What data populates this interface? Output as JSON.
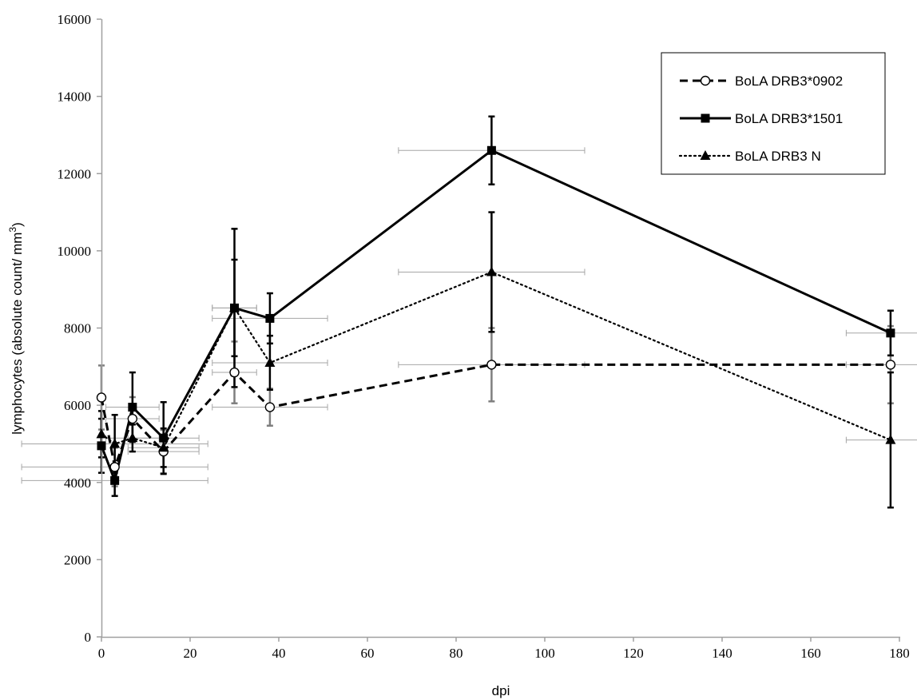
{
  "chart_data": {
    "type": "line",
    "xlabel": "dpi",
    "ylabel_main": "lymphocytes (absolute count/ mm",
    "ylabel_sup": "3",
    "ylabel_close": ")",
    "xlim": [
      0,
      180
    ],
    "ylim": [
      0,
      16000
    ],
    "x_ticks": [
      0,
      20,
      40,
      60,
      80,
      100,
      120,
      140,
      160,
      180
    ],
    "y_ticks": [
      0,
      2000,
      4000,
      6000,
      8000,
      10000,
      12000,
      14000,
      16000
    ],
    "grid": false,
    "legend_position": "top-right",
    "x": [
      0,
      3,
      7,
      14,
      30,
      38,
      88,
      178
    ],
    "x_error": [
      0,
      21,
      6,
      8,
      5,
      13,
      21,
      10
    ],
    "series": [
      {
        "name": "BoLA DRB3*0902",
        "style": "dashed",
        "marker": "open-circle",
        "values": [
          6200,
          4400,
          5650,
          4800,
          6850,
          5950,
          7050,
          7050
        ],
        "y_error": [
          830,
          500,
          560,
          560,
          800,
          480,
          950,
          1000
        ]
      },
      {
        "name": "BoLA DRB3*1501",
        "style": "solid",
        "marker": "filled-square",
        "values": [
          4950,
          4050,
          5950,
          5150,
          8520,
          8250,
          12600,
          7870
        ],
        "y_error": [
          700,
          400,
          900,
          930,
          2050,
          650,
          880,
          580
        ]
      },
      {
        "name": "BoLA DRB3 N",
        "style": "dotted",
        "marker": "filled-triangle",
        "values": [
          5250,
          5000,
          5150,
          4900,
          8520,
          7100,
          9450,
          5100
        ],
        "y_error": [
          600,
          750,
          350,
          500,
          1250,
          700,
          1550,
          1750
        ]
      }
    ],
    "colors": {
      "axis": "#a0a0a0",
      "series": "#000000",
      "xerror": "#a6a6a6",
      "yerror_grey": "#7f7f7f"
    }
  }
}
